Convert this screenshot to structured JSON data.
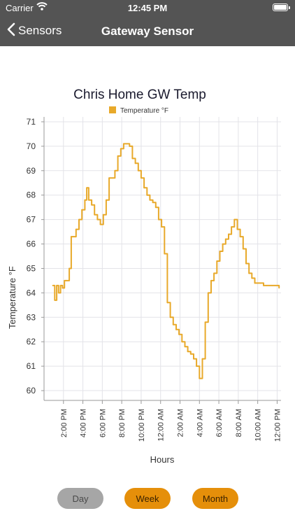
{
  "status_bar": {
    "carrier": "Carrier",
    "time": "12:45 PM"
  },
  "nav": {
    "back_label": "Sensors",
    "title": "Gateway Sensor"
  },
  "chart_data": {
    "type": "line",
    "title": "Chris Home GW Temp",
    "xlabel": "Hours",
    "ylabel": "Temperature °F",
    "legend": "top",
    "grid": true,
    "ylim": [
      59.6,
      71.2
    ],
    "y_ticks": [
      60,
      61,
      62,
      63,
      64,
      65,
      66,
      67,
      68,
      69,
      70,
      71
    ],
    "x_range_hours": [
      12.0,
      36.4
    ],
    "x_ticks": [
      {
        "hour": 14,
        "label": "2:00 PM"
      },
      {
        "hour": 16,
        "label": "4:00 PM"
      },
      {
        "hour": 18,
        "label": "6:00 PM"
      },
      {
        "hour": 20,
        "label": "8:00 PM"
      },
      {
        "hour": 22,
        "label": "10:00 PM"
      },
      {
        "hour": 24,
        "label": "12:00 AM"
      },
      {
        "hour": 26,
        "label": "2:00 AM"
      },
      {
        "hour": 28,
        "label": "4:00 AM"
      },
      {
        "hour": 30,
        "label": "6:00 AM"
      },
      {
        "hour": 32,
        "label": "8:00 AM"
      },
      {
        "hour": 34,
        "label": "10:00 AM"
      },
      {
        "hour": 36,
        "label": "12:00 PM"
      }
    ],
    "series": [
      {
        "name": "Temperature °F",
        "color": "#e8a92a",
        "x": [
          12.9,
          13.1,
          13.3,
          13.5,
          13.7,
          13.9,
          14.1,
          14.3,
          14.6,
          14.8,
          15.0,
          15.3,
          15.6,
          15.9,
          16.2,
          16.4,
          16.6,
          16.9,
          17.2,
          17.5,
          17.8,
          18.1,
          18.4,
          18.7,
          19.0,
          19.3,
          19.6,
          19.9,
          20.2,
          20.5,
          20.8,
          21.1,
          21.4,
          21.7,
          22.0,
          22.3,
          22.6,
          22.9,
          23.2,
          23.5,
          23.8,
          24.1,
          24.4,
          24.7,
          25.0,
          25.3,
          25.6,
          25.9,
          26.2,
          26.5,
          26.8,
          27.1,
          27.4,
          27.7,
          28.0,
          28.3,
          28.6,
          28.9,
          29.2,
          29.5,
          29.8,
          30.1,
          30.4,
          30.7,
          31.0,
          31.3,
          31.6,
          31.9,
          32.2,
          32.5,
          32.8,
          33.1,
          33.4,
          33.7,
          34.0,
          34.3,
          34.6,
          34.9,
          35.2,
          35.5,
          35.8,
          36.1,
          36.2
        ],
        "y": [
          64.3,
          63.7,
          64.3,
          64.0,
          64.3,
          64.2,
          64.5,
          64.5,
          65.0,
          66.3,
          66.3,
          66.6,
          67.0,
          67.4,
          67.8,
          68.3,
          67.8,
          67.6,
          67.2,
          67.0,
          66.8,
          67.2,
          67.8,
          68.7,
          68.7,
          69.0,
          69.6,
          69.9,
          70.1,
          70.1,
          70.0,
          69.5,
          69.3,
          69.0,
          68.7,
          68.3,
          68.0,
          67.8,
          67.7,
          67.5,
          67.0,
          66.7,
          65.6,
          63.6,
          63.0,
          62.7,
          62.5,
          62.3,
          62.0,
          61.8,
          61.6,
          61.5,
          61.3,
          61.0,
          60.5,
          61.3,
          62.8,
          64.0,
          64.5,
          64.8,
          65.3,
          65.7,
          66.0,
          66.2,
          66.4,
          66.7,
          67.0,
          66.6,
          66.3,
          65.8,
          65.2,
          64.8,
          64.6,
          64.4,
          64.4,
          64.4,
          64.3,
          64.3,
          64.3,
          64.3,
          64.3,
          64.3,
          64.2
        ]
      }
    ]
  },
  "range_buttons": {
    "day": "Day",
    "week": "Week",
    "month": "Month"
  }
}
